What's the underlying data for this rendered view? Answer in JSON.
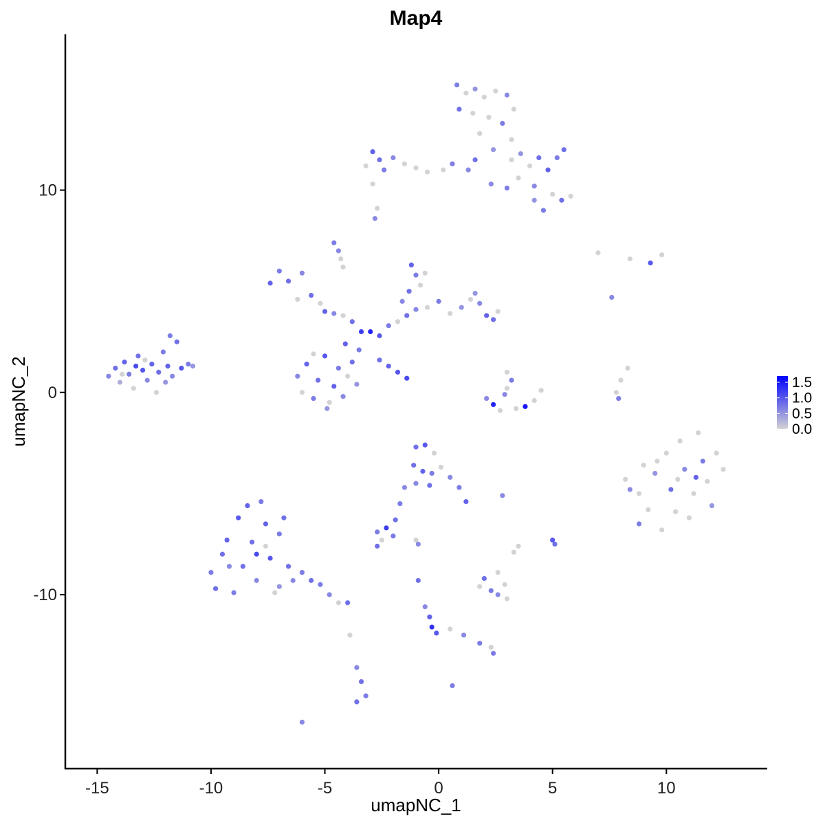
{
  "chart_data": {
    "type": "scatter",
    "title": "Map4",
    "xlabel": "umapNC_1",
    "ylabel": "umapNC_2",
    "xlim": [
      -16.4,
      14.4
    ],
    "ylim": [
      -18.6,
      17.7
    ],
    "x_ticks": [
      -15,
      -10,
      -5,
      0,
      5,
      10
    ],
    "y_ticks": [
      -10,
      0,
      10
    ],
    "x_tick_labels": [
      "-15",
      "-10",
      "-5",
      "0",
      "5",
      "10"
    ],
    "y_tick_labels": [
      "-10",
      "0",
      "10"
    ],
    "grid": false,
    "legend": {
      "placement": "right",
      "type": "colorbar",
      "range": [
        0,
        1.7
      ],
      "ticks": [
        0,
        0.5,
        1.0,
        1.5
      ],
      "tick_labels": [
        "0.0",
        "0.5",
        "1.0",
        "1.5"
      ],
      "low_color": "#d3d3d3",
      "high_color": "#0000ff"
    },
    "point_fields": [
      "umapNC_1",
      "umapNC_2",
      "expression"
    ],
    "points": [
      [
        -14.5,
        0.8,
        0.6
      ],
      [
        -14.2,
        1.2,
        0.8
      ],
      [
        -14.0,
        0.5,
        0.3
      ],
      [
        -13.8,
        1.5,
        0.9
      ],
      [
        -13.6,
        0.9,
        0.7
      ],
      [
        -13.4,
        0.2,
        0.0
      ],
      [
        -13.2,
        1.8,
        0.8
      ],
      [
        -13.0,
        1.1,
        1.0
      ],
      [
        -12.8,
        0.6,
        0.6
      ],
      [
        -12.6,
        1.4,
        0.9
      ],
      [
        -12.4,
        0.0,
        0.0
      ],
      [
        -12.3,
        1.0,
        0.8
      ],
      [
        -12.1,
        2.0,
        0.7
      ],
      [
        -11.9,
        1.3,
        0.9
      ],
      [
        -11.7,
        0.8,
        0.6
      ],
      [
        -11.5,
        2.5,
        0.8
      ],
      [
        -11.3,
        1.2,
        1.0
      ],
      [
        -11.0,
        1.4,
        0.7
      ],
      [
        -10.8,
        1.3,
        0.5
      ],
      [
        -13.9,
        0.9,
        0.0
      ],
      [
        -12.9,
        1.6,
        0.0
      ],
      [
        -12.0,
        0.5,
        0.5
      ],
      [
        -11.8,
        2.8,
        0.7
      ],
      [
        -13.3,
        1.3,
        1.1
      ],
      [
        -7.4,
        5.4,
        0.9
      ],
      [
        -7.0,
        6.0,
        0.7
      ],
      [
        -6.6,
        5.5,
        0.8
      ],
      [
        -6.2,
        4.6,
        0.0
      ],
      [
        -6.0,
        5.9,
        0.6
      ],
      [
        -5.6,
        4.8,
        0.8
      ],
      [
        -5.2,
        4.4,
        0.0
      ],
      [
        -5.0,
        4.0,
        0.9
      ],
      [
        -4.6,
        3.9,
        0.6
      ],
      [
        -4.2,
        3.8,
        0.0
      ],
      [
        -3.8,
        3.5,
        0.8
      ],
      [
        -3.4,
        3.0,
        1.2
      ],
      [
        -3.0,
        3.0,
        1.4
      ],
      [
        -2.6,
        2.8,
        1.0
      ],
      [
        -2.2,
        3.3,
        0.7
      ],
      [
        -1.8,
        3.5,
        0.0
      ],
      [
        -1.4,
        3.8,
        0.8
      ],
      [
        -1.0,
        4.1,
        0.6
      ],
      [
        -0.5,
        4.2,
        0.0
      ],
      [
        0.0,
        4.5,
        0.7
      ],
      [
        0.5,
        3.9,
        0.0
      ],
      [
        1.0,
        4.2,
        0.5
      ],
      [
        1.4,
        4.6,
        0.0
      ],
      [
        1.8,
        4.4,
        0.6
      ],
      [
        2.1,
        3.8,
        0.9
      ],
      [
        2.4,
        3.6,
        0.8
      ],
      [
        2.6,
        4.0,
        0.0
      ],
      [
        1.6,
        4.9,
        0.5
      ],
      [
        -1.2,
        6.3,
        0.9
      ],
      [
        -1.0,
        5.8,
        0.7
      ],
      [
        -0.8,
        5.3,
        0.0
      ],
      [
        -1.3,
        5.0,
        0.8
      ],
      [
        -1.6,
        4.5,
        0.6
      ],
      [
        -0.6,
        5.9,
        0.0
      ],
      [
        -4.6,
        7.4,
        0.7
      ],
      [
        -4.4,
        7.0,
        0.6
      ],
      [
        -4.3,
        6.6,
        0.0
      ],
      [
        -4.2,
        6.2,
        0.0
      ],
      [
        -2.6,
        1.6,
        0.8
      ],
      [
        -2.2,
        1.3,
        0.9
      ],
      [
        -1.8,
        1.0,
        1.0
      ],
      [
        -1.4,
        0.7,
        1.1
      ],
      [
        -6.2,
        0.8,
        0.6
      ],
      [
        -6.0,
        0.0,
        0.0
      ],
      [
        -5.8,
        1.4,
        0.9
      ],
      [
        -5.5,
        -0.3,
        0.7
      ],
      [
        -5.3,
        0.6,
        0.8
      ],
      [
        -5.0,
        1.8,
        1.0
      ],
      [
        -4.8,
        -0.5,
        0.0
      ],
      [
        -4.6,
        0.3,
        0.9
      ],
      [
        -4.4,
        1.2,
        0.7
      ],
      [
        -4.2,
        -0.2,
        0.6
      ],
      [
        -4.0,
        0.8,
        0.0
      ],
      [
        -3.8,
        1.5,
        0.8
      ],
      [
        -3.6,
        0.4,
        0.5
      ],
      [
        -4.1,
        2.4,
        0.9
      ],
      [
        -3.5,
        2.1,
        0.7
      ],
      [
        -5.5,
        1.9,
        0.0
      ],
      [
        -4.9,
        -0.8,
        0.5
      ],
      [
        0.8,
        15.2,
        0.7
      ],
      [
        1.2,
        14.8,
        0.0
      ],
      [
        1.6,
        15.0,
        0.5
      ],
      [
        2.0,
        14.6,
        0.0
      ],
      [
        2.5,
        14.9,
        0.0
      ],
      [
        3.0,
        14.7,
        0.6
      ],
      [
        3.3,
        14.0,
        0.0
      ],
      [
        0.9,
        14.0,
        0.8
      ],
      [
        1.5,
        13.8,
        0.0
      ],
      [
        2.2,
        13.6,
        0.0
      ],
      [
        2.8,
        13.3,
        0.7
      ],
      [
        1.8,
        12.8,
        0.0
      ],
      [
        3.2,
        12.5,
        0.0
      ],
      [
        2.4,
        12.0,
        0.5
      ],
      [
        1.6,
        11.5,
        0.8
      ],
      [
        1.3,
        11.0,
        0.6
      ],
      [
        -3.2,
        11.2,
        0.0
      ],
      [
        -2.9,
        11.9,
        0.9
      ],
      [
        -2.6,
        11.5,
        0.8
      ],
      [
        -2.4,
        11.0,
        0.7
      ],
      [
        -2.0,
        11.6,
        0.6
      ],
      [
        -1.5,
        11.3,
        0.0
      ],
      [
        -1.0,
        11.1,
        0.0
      ],
      [
        -0.5,
        10.9,
        0.0
      ],
      [
        0.2,
        11.0,
        0.0
      ],
      [
        0.6,
        11.3,
        0.7
      ],
      [
        -2.9,
        10.3,
        0.0
      ],
      [
        -2.8,
        8.6,
        0.6
      ],
      [
        -2.7,
        9.1,
        0.0
      ],
      [
        3.2,
        11.5,
        0.0
      ],
      [
        3.6,
        11.8,
        0.5
      ],
      [
        4.0,
        11.2,
        0.0
      ],
      [
        4.4,
        11.6,
        0.8
      ],
      [
        4.8,
        11.0,
        0.9
      ],
      [
        5.2,
        11.6,
        0.7
      ],
      [
        5.5,
        12.0,
        0.8
      ],
      [
        3.5,
        10.6,
        0.0
      ],
      [
        4.2,
        10.2,
        0.6
      ],
      [
        5.0,
        9.8,
        0.0
      ],
      [
        5.4,
        9.5,
        0.8
      ],
      [
        5.8,
        9.7,
        0.0
      ],
      [
        4.6,
        9.0,
        0.7
      ],
      [
        4.2,
        9.5,
        0.5
      ],
      [
        2.3,
        10.3,
        0.6
      ],
      [
        3.0,
        10.1,
        0.7
      ],
      [
        2.1,
        -0.3,
        0.6
      ],
      [
        2.4,
        -0.6,
        1.4
      ],
      [
        2.7,
        -0.9,
        0.0
      ],
      [
        3.0,
        1.0,
        0.0
      ],
      [
        3.2,
        0.6,
        0.7
      ],
      [
        3.0,
        0.2,
        0.0
      ],
      [
        3.4,
        -0.8,
        0.0
      ],
      [
        3.8,
        -0.7,
        1.5
      ],
      [
        4.2,
        -0.4,
        0.0
      ],
      [
        4.5,
        0.1,
        0.0
      ],
      [
        2.9,
        -0.1,
        0.6
      ],
      [
        7.0,
        6.9,
        0.0
      ],
      [
        8.4,
        6.6,
        0.0
      ],
      [
        9.3,
        6.4,
        1.0
      ],
      [
        9.8,
        6.8,
        0.0
      ],
      [
        7.6,
        4.7,
        0.6
      ],
      [
        7.8,
        0.0,
        0.0
      ],
      [
        8.0,
        0.6,
        0.0
      ],
      [
        8.3,
        1.2,
        0.0
      ],
      [
        7.9,
        -0.3,
        0.7
      ],
      [
        8.2,
        -4.3,
        0.0
      ],
      [
        8.4,
        -4.8,
        0.6
      ],
      [
        8.8,
        -5.0,
        0.0
      ],
      [
        8.8,
        -6.5,
        0.7
      ],
      [
        9.2,
        -5.8,
        0.0
      ],
      [
        9.5,
        -4.0,
        0.5
      ],
      [
        9.8,
        -6.8,
        0.0
      ],
      [
        10.0,
        -3.0,
        0.0
      ],
      [
        10.2,
        -4.8,
        0.8
      ],
      [
        10.4,
        -5.9,
        0.0
      ],
      [
        10.6,
        -2.4,
        0.0
      ],
      [
        10.8,
        -3.8,
        0.6
      ],
      [
        11.0,
        -6.2,
        0.0
      ],
      [
        11.2,
        -5.0,
        0.0
      ],
      [
        11.4,
        -2.0,
        0.0
      ],
      [
        11.6,
        -3.4,
        0.7
      ],
      [
        11.8,
        -4.4,
        0.0
      ],
      [
        12.0,
        -5.6,
        0.5
      ],
      [
        12.2,
        -3.0,
        0.0
      ],
      [
        12.5,
        -3.8,
        0.0
      ],
      [
        9.6,
        -3.4,
        0.0
      ],
      [
        10.5,
        -4.3,
        0.0
      ],
      [
        11.3,
        -4.2,
        0.9
      ],
      [
        9.0,
        -3.6,
        0.0
      ],
      [
        -1.0,
        -2.7,
        0.8
      ],
      [
        -0.6,
        -2.6,
        1.0
      ],
      [
        -0.2,
        -3.0,
        0.0
      ],
      [
        -1.1,
        -3.6,
        0.8
      ],
      [
        -0.7,
        -3.9,
        0.9
      ],
      [
        -0.3,
        -4.0,
        0.7
      ],
      [
        0.1,
        -3.7,
        0.0
      ],
      [
        0.5,
        -4.2,
        0.6
      ],
      [
        0.9,
        -4.7,
        0.7
      ],
      [
        1.2,
        -5.4,
        0.9
      ],
      [
        -1.0,
        -4.5,
        0.6
      ],
      [
        -0.4,
        -4.6,
        0.8
      ],
      [
        -1.5,
        -4.7,
        0.6
      ],
      [
        -1.7,
        -5.5,
        0.7
      ],
      [
        -1.9,
        -6.3,
        0.8
      ],
      [
        -2.7,
        -6.9,
        0.7
      ],
      [
        -2.3,
        -6.7,
        1.2
      ],
      [
        -2.0,
        -7.1,
        0.7
      ],
      [
        -2.5,
        -7.3,
        0.0
      ],
      [
        -2.7,
        -7.6,
        0.8
      ],
      [
        -1.0,
        -7.3,
        0.0
      ],
      [
        -0.9,
        -7.5,
        0.6
      ],
      [
        2.8,
        -5.1,
        0.6
      ],
      [
        3.5,
        -7.6,
        0.0
      ],
      [
        3.3,
        -7.9,
        0.0
      ],
      [
        5.0,
        -7.3,
        1.0
      ],
      [
        5.1,
        -7.5,
        0.8
      ],
      [
        1.8,
        -9.6,
        0.0
      ],
      [
        2.0,
        -9.2,
        0.8
      ],
      [
        2.3,
        -9.8,
        0.7
      ],
      [
        2.6,
        -8.9,
        0.0
      ],
      [
        2.9,
        -9.5,
        0.0
      ],
      [
        2.6,
        -10.0,
        0.6
      ],
      [
        3.0,
        -10.2,
        0.0
      ],
      [
        -0.9,
        -9.3,
        0.8
      ],
      [
        -0.6,
        -10.6,
        0.6
      ],
      [
        -0.4,
        -11.1,
        0.9
      ],
      [
        -0.3,
        -11.6,
        1.3
      ],
      [
        -0.1,
        -11.9,
        1.0
      ],
      [
        0.5,
        -11.7,
        0.0
      ],
      [
        1.1,
        -12.0,
        0.6
      ],
      [
        1.8,
        -12.4,
        0.7
      ],
      [
        2.3,
        -12.6,
        0.0
      ],
      [
        2.4,
        -12.9,
        0.7
      ],
      [
        0.6,
        -14.5,
        0.7
      ],
      [
        -10.0,
        -8.9,
        0.7
      ],
      [
        -9.8,
        -9.7,
        0.8
      ],
      [
        -9.5,
        -8.0,
        0.8
      ],
      [
        -9.3,
        -7.3,
        0.9
      ],
      [
        -9.0,
        -9.9,
        0.7
      ],
      [
        -8.8,
        -6.2,
        1.0
      ],
      [
        -8.6,
        -8.6,
        0.8
      ],
      [
        -8.4,
        -5.6,
        0.9
      ],
      [
        -8.2,
        -7.4,
        0.8
      ],
      [
        -8.0,
        -9.3,
        0.6
      ],
      [
        -7.8,
        -5.4,
        0.7
      ],
      [
        -7.6,
        -6.5,
        0.9
      ],
      [
        -7.4,
        -8.2,
        1.0
      ],
      [
        -7.2,
        -9.9,
        0.0
      ],
      [
        -7.0,
        -7.0,
        0.7
      ],
      [
        -6.8,
        -6.2,
        0.8
      ],
      [
        -6.6,
        -8.6,
        0.8
      ],
      [
        -6.4,
        -9.3,
        0.6
      ],
      [
        -6.0,
        -8.9,
        0.7
      ],
      [
        -5.6,
        -9.3,
        0.8
      ],
      [
        -5.2,
        -9.5,
        0.7
      ],
      [
        -4.8,
        -10.0,
        0.6
      ],
      [
        -4.4,
        -10.4,
        0.0
      ],
      [
        -4.0,
        -10.4,
        0.8
      ],
      [
        -9.2,
        -8.6,
        0.6
      ],
      [
        -8.0,
        -8.0,
        1.1
      ],
      [
        -7.6,
        -7.6,
        0.0
      ],
      [
        -7.0,
        -9.6,
        0.5
      ],
      [
        -3.9,
        -12.0,
        0.0
      ],
      [
        -3.6,
        -13.6,
        0.6
      ],
      [
        -3.4,
        -14.3,
        0.8
      ],
      [
        -3.2,
        -15.0,
        0.7
      ],
      [
        -3.6,
        -15.3,
        0.8
      ],
      [
        -6.0,
        -16.3,
        0.6
      ]
    ]
  }
}
